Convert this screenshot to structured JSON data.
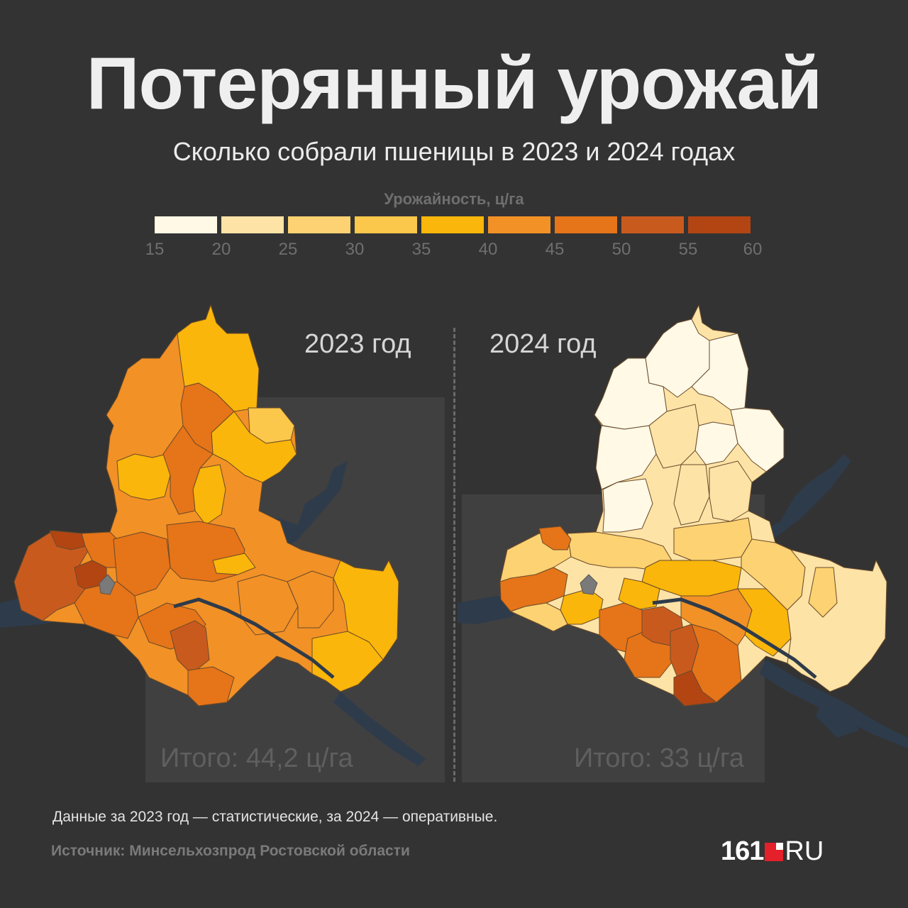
{
  "title": "Потерянный урожай",
  "subtitle": "Сколько собрали пшеницы в 2023 и 2024 годах",
  "legend": {
    "title": "Урожайность, ц/га",
    "ticks": [
      "15",
      "20",
      "25",
      "30",
      "35",
      "40",
      "45",
      "50",
      "55",
      "60"
    ],
    "colors": [
      "#fff9e6",
      "#fde3a6",
      "#fdd272",
      "#fcc84b",
      "#fab60a",
      "#f29126",
      "#e67418",
      "#c95a1e",
      "#b34513"
    ]
  },
  "maps": [
    {
      "year_label": "2023 год",
      "total": "Итого: 44,2 ц/га"
    },
    {
      "year_label": "2024 год",
      "total": "Итого: 33 ц/га"
    }
  ],
  "note": "Данные за 2023 год — статистические, за 2024 — оперативные.",
  "source": "Источник: Минсельхозпрод Ростовской области",
  "logo": {
    "number": "161",
    "suffix": "RU"
  }
}
